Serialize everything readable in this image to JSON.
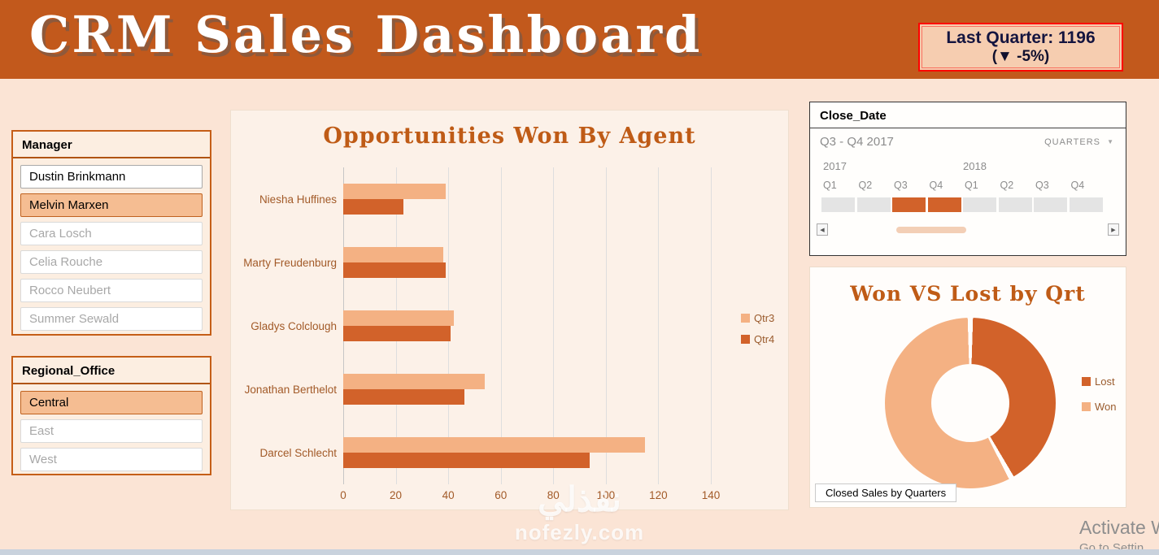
{
  "header": {
    "title": "CRM Sales Dashboard",
    "kpi_line1": "Last Quarter: 1196",
    "kpi_line2": "(▼ -5%)"
  },
  "colors": {
    "banner": "#C2591C",
    "accent": "#BF5B16",
    "qtr3": "#F4B183",
    "qtr4": "#D2622A",
    "timeline_selected": "#D2622A",
    "kpi_border": "#FF0000",
    "kpi_background": "#F6CDB0"
  },
  "icons": {
    "scroll_left": "◀",
    "scroll_right": "▶",
    "dropdown": "▼"
  },
  "slicers": {
    "manager": {
      "title": "Manager",
      "items": [
        {
          "label": "Dustin Brinkmann",
          "state": "unselected"
        },
        {
          "label": "Melvin Marxen",
          "state": "selected"
        },
        {
          "label": "Cara Losch",
          "state": "disabled"
        },
        {
          "label": "Celia Rouche",
          "state": "disabled"
        },
        {
          "label": "Rocco Neubert",
          "state": "disabled"
        },
        {
          "label": "Summer Sewald",
          "state": "disabled"
        }
      ]
    },
    "regional_office": {
      "title": "Regional_Office",
      "items": [
        {
          "label": "Central",
          "state": "selected"
        },
        {
          "label": "East",
          "state": "disabled"
        },
        {
          "label": "West",
          "state": "disabled"
        }
      ]
    }
  },
  "timeline": {
    "title": "Close_Date",
    "range_label": "Q3 - Q4 2017",
    "granularity": "QUARTERS",
    "years": [
      "2017",
      "2018"
    ],
    "quarters": [
      {
        "year": "2017",
        "label": "Q1",
        "selected": false
      },
      {
        "year": "2017",
        "label": "Q2",
        "selected": false
      },
      {
        "year": "2017",
        "label": "Q3",
        "selected": true
      },
      {
        "year": "2017",
        "label": "Q4",
        "selected": true
      },
      {
        "year": "2018",
        "label": "Q1",
        "selected": false
      },
      {
        "year": "2018",
        "label": "Q2",
        "selected": false
      },
      {
        "year": "2018",
        "label": "Q3",
        "selected": false
      },
      {
        "year": "2018",
        "label": "Q4",
        "selected": false
      }
    ]
  },
  "chart_data": [
    {
      "type": "bar",
      "orientation": "horizontal",
      "title": "Opportunities Won By Agent",
      "categories": [
        "Niesha Huffines",
        "Marty Freudenburg",
        "Gladys Colclough",
        "Jonathan Berthelot",
        "Darcel Schlecht"
      ],
      "series": [
        {
          "name": "Qtr3",
          "color": "#F4B183",
          "values": [
            39,
            38,
            42,
            54,
            115
          ]
        },
        {
          "name": "Qtr4",
          "color": "#D2622A",
          "values": [
            23,
            39,
            41,
            46,
            94
          ]
        }
      ],
      "xlabel": "",
      "ylabel": "",
      "xlim": [
        0,
        140
      ],
      "xticks": [
        0,
        20,
        40,
        60,
        80,
        100,
        120,
        140
      ],
      "grid": "vertical",
      "legend_position": "right"
    },
    {
      "type": "pie",
      "subtype": "donut",
      "title": "Won VS Lost by Qrt",
      "labels": [
        "Lost",
        "Won"
      ],
      "values": [
        42,
        58
      ],
      "colors": [
        "#D2622A",
        "#F4B183"
      ],
      "legend_position": "right",
      "caption": "Closed Sales by Quarters"
    }
  ],
  "watermark": {
    "line1": "نفذلي",
    "line2": "nofezly.com"
  },
  "system": {
    "activate_line1": "Activate W",
    "activate_line2": "Go to Settin"
  }
}
